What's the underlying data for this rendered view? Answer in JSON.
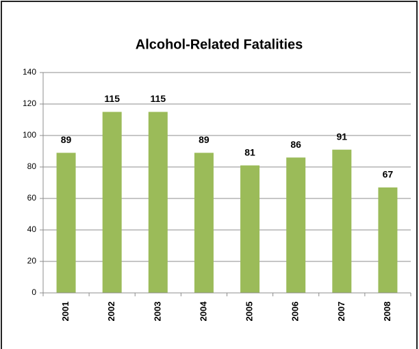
{
  "chart_data": {
    "type": "bar",
    "title": "Alcohol-Related Fatalities",
    "categories": [
      "2001",
      "2002",
      "2003",
      "2004",
      "2005",
      "2006",
      "2007",
      "2008"
    ],
    "values": [
      89,
      115,
      115,
      89,
      81,
      86,
      91,
      67
    ],
    "color": "#9bbb59",
    "ylim": [
      0,
      140
    ],
    "yticks": [
      0,
      20,
      40,
      60,
      80,
      100,
      120,
      140
    ],
    "grid": true,
    "data_labels": true
  }
}
